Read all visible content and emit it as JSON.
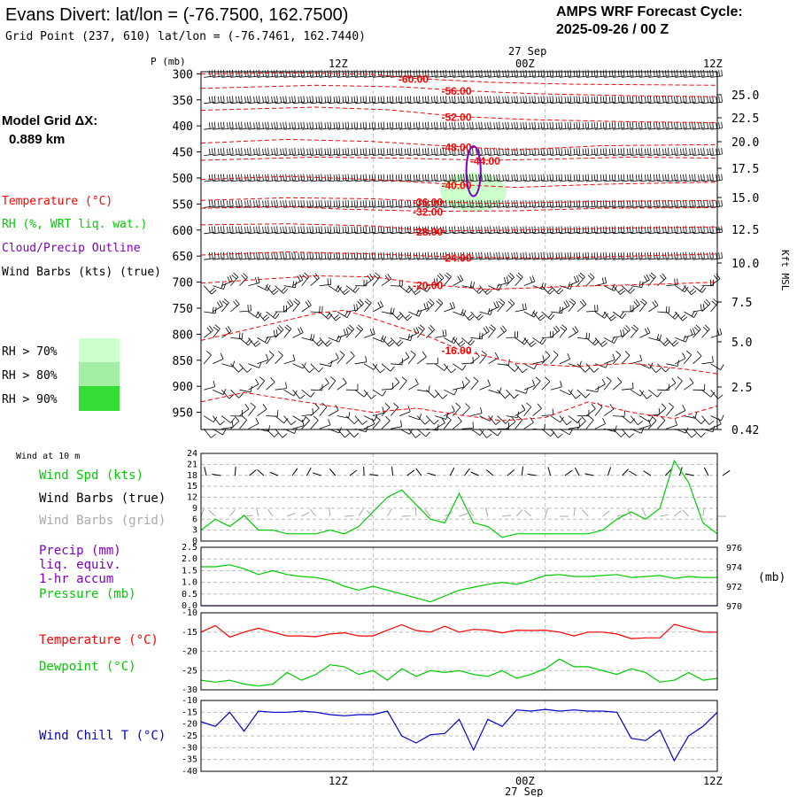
{
  "header": {
    "title": "Evans Divert:  lat/lon = (-76.7500, 162.7500)",
    "subtitle": "Grid Point (237, 610) lat/lon = (-76.7461, 162.7440)",
    "forecast_label": "AMPS WRF Forecast Cycle:",
    "forecast_cycle": "2025-09-26 / 00  Z"
  },
  "side_info": {
    "grid_label": "Model Grid ΔX:",
    "grid_value": "0.889 km"
  },
  "colors": {
    "temperature": "#ff0000",
    "rh": "#00cc00",
    "cloud": "#7f00bf",
    "wind": "#000000",
    "wind_grid": "#aaaaaa",
    "windchill": "#0000cc",
    "rh70": "#ccffcc",
    "rh80": "#a3eea3",
    "rh90": "#33dd33"
  },
  "chart_data": [
    {
      "type": "line",
      "name": "upper_air_section",
      "time_labels": {
        "top_date": "27 Sep",
        "ticks": [
          "12Z",
          "00Z",
          "12Z"
        ],
        "bottom_date": "27 Sep"
      },
      "ylabel": "P (mb)",
      "y_ticks": [
        300,
        350,
        400,
        450,
        500,
        550,
        600,
        650,
        700,
        750,
        800,
        850,
        900,
        950
      ],
      "ylim": [
        983,
        296
      ],
      "xlim": [
        0,
        36
      ],
      "y2label": "Kft MSL",
      "y2_ticks": [
        "25.0",
        "22.5",
        "20.0",
        "17.5",
        "15.0",
        "12.5",
        "10.0",
        "7.5",
        "5.0",
        "2.5",
        "0.42"
      ],
      "legend": [
        {
          "label": "Temperature (°C)",
          "color": "#ff0000"
        },
        {
          "label": "RH (%, WRT liq. wat.)",
          "color": "#00cc00"
        },
        {
          "label": "Cloud/Precip Outline",
          "color": "#7f00bf"
        },
        {
          "label": "Wind Barbs (kts) (true)",
          "color": "#000000"
        }
      ],
      "rh_legend": [
        "RH > 70%",
        "RH > 80%",
        "RH > 90%"
      ],
      "temperature_contours": [
        {
          "label": "-60.00",
          "points": [
            [
              0,
              300
            ],
            [
              6,
              298
            ],
            [
              12,
              301
            ],
            [
              15,
              309
            ],
            [
              20,
              316
            ],
            [
              26,
              320
            ],
            [
              36,
              322
            ]
          ]
        },
        {
          "label": "-56.00",
          "points": [
            [
              0,
              328
            ],
            [
              8,
              322
            ],
            [
              14,
              325
            ],
            [
              18,
              332
            ],
            [
              23,
              338
            ],
            [
              30,
              342
            ],
            [
              36,
              344
            ]
          ]
        },
        {
          "label": "-52.00",
          "points": [
            [
              0,
              370
            ],
            [
              8,
              364
            ],
            [
              13,
              369
            ],
            [
              18,
              382
            ],
            [
              23,
              388
            ],
            [
              30,
              392
            ],
            [
              36,
              394
            ]
          ]
        },
        {
          "label": "-48.00",
          "points": [
            [
              0,
              433
            ],
            [
              6,
              426
            ],
            [
              12,
              430
            ],
            [
              18,
              440
            ],
            [
              22,
              446
            ],
            [
              28,
              438
            ],
            [
              36,
              436
            ]
          ]
        },
        {
          "label": "-44.00",
          "points": [
            [
              0,
              466
            ],
            [
              8,
              460
            ],
            [
              14,
              462
            ],
            [
              20,
              466
            ],
            [
              24,
              464
            ],
            [
              30,
              460
            ],
            [
              36,
              462
            ]
          ]
        },
        {
          "label": "-40.00",
          "points": [
            [
              0,
              503
            ],
            [
              6,
              497
            ],
            [
              12,
              503
            ],
            [
              18,
              513
            ],
            [
              22,
              518
            ],
            [
              28,
              512
            ],
            [
              36,
              508
            ]
          ]
        },
        {
          "label": "-36.00",
          "points": [
            [
              0,
              543
            ],
            [
              6,
              538
            ],
            [
              12,
              540
            ],
            [
              16,
              545
            ],
            [
              20,
              549
            ],
            [
              28,
              545
            ],
            [
              36,
              543
            ]
          ]
        },
        {
          "label": "-32.00",
          "points": [
            [
              0,
              558
            ],
            [
              6,
              555
            ],
            [
              10,
              560
            ],
            [
              16,
              564
            ],
            [
              22,
              563
            ],
            [
              28,
              558
            ],
            [
              36,
              557
            ]
          ]
        },
        {
          "label": "-28.00",
          "points": [
            [
              0,
              590
            ],
            [
              6,
              588
            ],
            [
              12,
              592
            ],
            [
              16,
              602
            ],
            [
              22,
              600
            ],
            [
              30,
              596
            ],
            [
              36,
              594
            ]
          ]
        },
        {
          "label": "-24.00",
          "points": [
            [
              0,
              648
            ],
            [
              6,
              642
            ],
            [
              12,
              646
            ],
            [
              18,
              652
            ],
            [
              24,
              654
            ],
            [
              30,
              650
            ],
            [
              36,
              646
            ]
          ]
        },
        {
          "label": "-20.00",
          "points": [
            [
              0,
              702
            ],
            [
              4,
              695
            ],
            [
              8,
              688
            ],
            [
              12,
              690
            ],
            [
              16,
              705
            ],
            [
              20,
              714
            ],
            [
              26,
              708
            ],
            [
              32,
              704
            ],
            [
              36,
              700
            ]
          ]
        },
        {
          "label": "-16.00",
          "points": [
            [
              0,
              812
            ],
            [
              4,
              786
            ],
            [
              8,
              760
            ],
            [
              10,
              754
            ],
            [
              12,
              770
            ],
            [
              16,
              806
            ],
            [
              18,
              830
            ],
            [
              22,
              856
            ],
            [
              26,
              862
            ],
            [
              30,
              856
            ],
            [
              34,
              868
            ],
            [
              36,
              876
            ]
          ]
        },
        {
          "label": "",
          "points": [
            [
              0,
              930
            ],
            [
              3,
              912
            ],
            [
              6,
              925
            ],
            [
              9,
              938
            ],
            [
              12,
              950
            ],
            [
              15,
              942
            ],
            [
              18,
              955
            ],
            [
              21,
              966
            ],
            [
              24,
              960
            ],
            [
              27,
              930
            ],
            [
              30,
              950
            ],
            [
              33,
              962
            ],
            [
              36,
              938
            ]
          ]
        }
      ],
      "cloud_outline": {
        "center": [
          19.0,
          487
        ],
        "half_width": 0.5,
        "half_height": 48
      },
      "rh_region_70": {
        "center": [
          19.0,
          527
        ],
        "half_width": 2.3,
        "half_height": 38
      },
      "wind_barbs": {
        "sample": [
          [
            20,
            250
          ],
          [
            15,
            245
          ],
          [
            10,
            240
          ]
        ]
      }
    },
    {
      "type": "line",
      "name": "wind_speed_10m",
      "title": "Wind at 10 m",
      "legend": [
        {
          "label": "Wind Spd (kts)",
          "color": "#00cc00"
        },
        {
          "label": "Wind Barbs (true)",
          "color": "#000000"
        },
        {
          "label": "Wind Barbs (grid)",
          "color": "#aaaaaa"
        }
      ],
      "y_ticks": [
        0,
        3,
        6,
        9,
        12,
        15,
        18,
        21,
        24
      ],
      "ylim": [
        0,
        24
      ],
      "xlim": [
        0,
        36
      ],
      "x": [
        0,
        1,
        2,
        3,
        4,
        5,
        6,
        7,
        8,
        9,
        10,
        11,
        12,
        13,
        14,
        15,
        16,
        17,
        18,
        19,
        20,
        21,
        22,
        23,
        24,
        25,
        26,
        27,
        28,
        29,
        30,
        31,
        32,
        33,
        34,
        35,
        36
      ],
      "values": [
        3,
        6,
        4,
        7,
        3,
        3,
        2,
        2,
        2,
        3,
        2,
        4,
        8,
        12,
        14,
        10,
        6,
        5,
        13,
        5,
        4,
        1,
        2,
        2,
        2,
        2,
        2,
        2,
        3,
        6,
        8,
        6,
        9,
        22,
        16,
        5,
        2
      ]
    },
    {
      "type": "line",
      "name": "precip_pressure",
      "legend": [
        {
          "label": "Precip (mm)",
          "color": "#7f00bf"
        },
        {
          "label": "liq. equiv.",
          "color": "#7f00bf"
        },
        {
          "label": "1-hr accum",
          "color": "#7f00bf"
        },
        {
          "label": "Pressure (mb)",
          "color": "#00cc00"
        }
      ],
      "y_ticks": [
        "0.0",
        "0.5",
        "1.0",
        "1.5",
        "2.0",
        "2.5"
      ],
      "ylim": [
        0,
        2.5
      ],
      "y2_ticks": [
        970,
        972,
        974,
        976
      ],
      "y2lim": [
        970,
        976
      ],
      "y2label": "(mb)",
      "xlim": [
        0,
        36
      ],
      "x": [
        0,
        1,
        2,
        3,
        4,
        5,
        6,
        7,
        8,
        9,
        10,
        11,
        12,
        13,
        14,
        15,
        16,
        17,
        18,
        19,
        20,
        21,
        22,
        23,
        24,
        25,
        26,
        27,
        28,
        29,
        30,
        31,
        32,
        33,
        34,
        35,
        36
      ],
      "pressure": [
        974.0,
        974.0,
        974.2,
        973.8,
        973.2,
        973.6,
        973.2,
        973.0,
        972.9,
        972.6,
        972.0,
        971.6,
        972.0,
        971.6,
        971.2,
        970.8,
        970.4,
        971.0,
        971.6,
        971.9,
        972.2,
        972.4,
        972.2,
        972.6,
        973.1,
        973.2,
        973.0,
        973.0,
        973.1,
        973.2,
        972.9,
        973.0,
        973.1,
        972.8,
        973.0,
        972.9,
        972.9
      ],
      "precip": [
        0,
        0,
        0,
        0,
        0,
        0,
        0,
        0,
        0,
        0,
        0,
        0,
        0,
        0,
        0,
        0,
        0,
        0,
        0,
        0,
        0,
        0,
        0,
        0,
        0,
        0,
        0,
        0,
        0,
        0,
        0,
        0,
        0,
        0,
        0,
        0,
        0
      ]
    },
    {
      "type": "line",
      "name": "temperature_dewpoint",
      "legend": [
        {
          "label": "Temperature (°C)",
          "color": "#ff0000"
        },
        {
          "label": "Dewpoint (°C)",
          "color": "#00cc00"
        }
      ],
      "y_ticks": [
        -10,
        -15,
        -20,
        -25,
        -30
      ],
      "ylim": [
        -30,
        -10
      ],
      "xlim": [
        0,
        36
      ],
      "x": [
        0,
        1,
        2,
        3,
        4,
        5,
        6,
        7,
        8,
        9,
        10,
        11,
        12,
        13,
        14,
        15,
        16,
        17,
        18,
        19,
        20,
        21,
        22,
        23,
        24,
        25,
        26,
        27,
        28,
        29,
        30,
        31,
        32,
        33,
        34,
        35,
        36
      ],
      "series": [
        {
          "name": "Temperature (°C)",
          "values": [
            -15.0,
            -13.3,
            -16.3,
            -15.0,
            -14.0,
            -15.0,
            -16.0,
            -16.0,
            -16.2,
            -15.5,
            -15.2,
            -16.0,
            -16.0,
            -14.5,
            -13.1,
            -14.6,
            -15.0,
            -13.5,
            -15.0,
            -14.3,
            -14.5,
            -15.2,
            -14.5,
            -14.6,
            -14.5,
            -15.0,
            -16.0,
            -15.0,
            -15.0,
            -15.5,
            -16.7,
            -16.5,
            -16.5,
            -13.0,
            -14.0,
            -15.0,
            -15.0
          ]
        },
        {
          "name": "Dewpoint (°C)",
          "values": [
            -27.5,
            -28.0,
            -27.5,
            -28.5,
            -29.0,
            -28.5,
            -25.5,
            -27.5,
            -26.0,
            -23.5,
            -24.0,
            -26.0,
            -25.0,
            -27.5,
            -24.5,
            -26.5,
            -25.0,
            -25.5,
            -25.0,
            -26.0,
            -26.5,
            -25.0,
            -27.0,
            -26.0,
            -24.5,
            -22.0,
            -24.0,
            -24.0,
            -25.0,
            -26.0,
            -24.5,
            -25.5,
            -28.0,
            -27.5,
            -25.5,
            -27.5,
            -27.0
          ]
        }
      ]
    },
    {
      "type": "line",
      "name": "wind_chill",
      "legend": [
        {
          "label": "Wind Chill T (°C)",
          "color": "#0000cc"
        }
      ],
      "y_ticks": [
        -10,
        -15,
        -20,
        -25,
        -30,
        -35,
        -40
      ],
      "ylim": [
        -40,
        -10
      ],
      "xlim": [
        0,
        36
      ],
      "x": [
        0,
        1,
        2,
        3,
        4,
        5,
        6,
        7,
        8,
        9,
        10,
        11,
        12,
        13,
        14,
        15,
        16,
        17,
        18,
        19,
        20,
        21,
        22,
        23,
        24,
        25,
        26,
        27,
        28,
        29,
        30,
        31,
        32,
        33,
        34,
        35,
        36
      ],
      "values": [
        -19.0,
        -21.0,
        -15.0,
        -23.0,
        -14.5,
        -15.0,
        -15.0,
        -14.5,
        -15.0,
        -16.0,
        -16.5,
        -16.0,
        -16.0,
        -14.5,
        -25.0,
        -28.0,
        -24.5,
        -24.0,
        -18.0,
        -31.0,
        -18.0,
        -21.0,
        -14.0,
        -14.5,
        -13.8,
        -14.5,
        -14.0,
        -14.5,
        -14.5,
        -15.0,
        -26.0,
        -27.0,
        -22.5,
        -35.5,
        -25.0,
        -21.0,
        -15.0
      ]
    }
  ]
}
